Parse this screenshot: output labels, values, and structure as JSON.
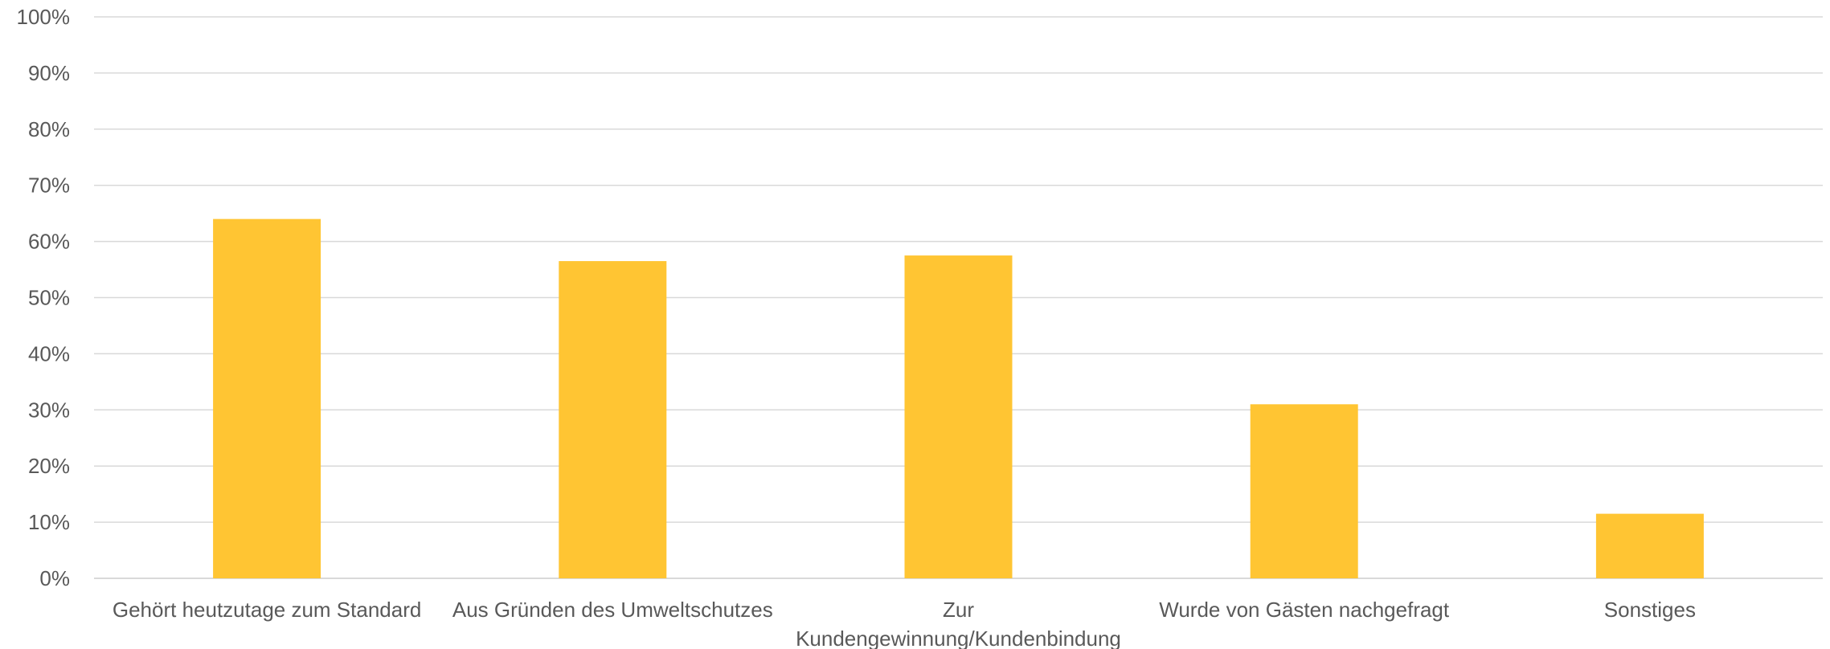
{
  "chart_data": {
    "type": "bar",
    "categories": [
      [
        "Gehört heutzutage zum Standard"
      ],
      [
        "Aus Gründen des Umweltschutzes"
      ],
      [
        "Zur",
        "Kundengewinnung/Kundenbindung"
      ],
      [
        "Wurde von Gästen nachgefragt"
      ],
      [
        "Sonstiges"
      ]
    ],
    "values": [
      0.64,
      0.565,
      0.575,
      0.31,
      0.115
    ],
    "ylim": [
      0,
      1
    ],
    "yticks": [
      "0%",
      "10%",
      "20%",
      "30%",
      "40%",
      "50%",
      "60%",
      "70%",
      "80%",
      "90%",
      "100%"
    ],
    "grid": true,
    "legend": "none",
    "title": "",
    "xlabel": "",
    "ylabel": "",
    "colors": {
      "bar": "#FFC533",
      "grid": "#D9D9D9",
      "text": "#595959"
    }
  }
}
